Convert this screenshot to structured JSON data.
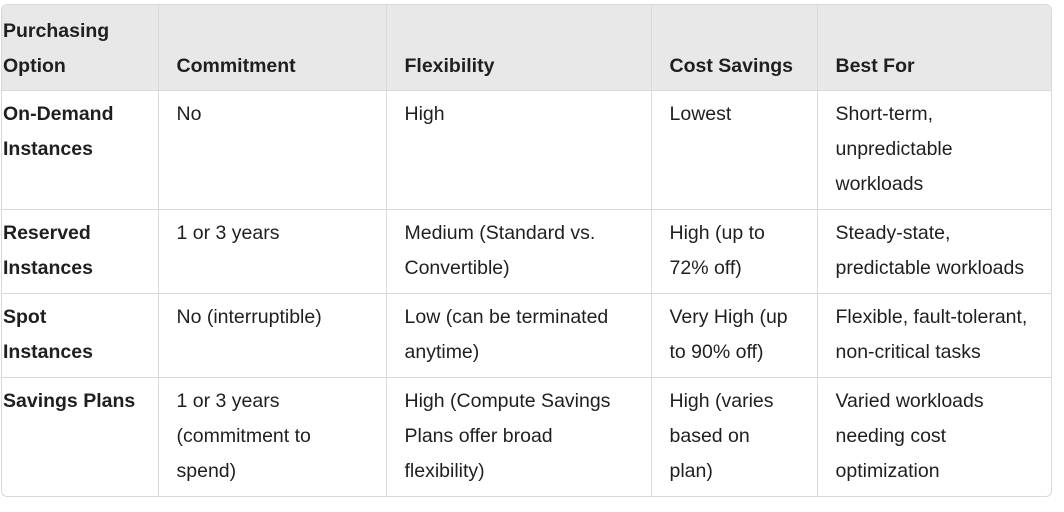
{
  "table": {
    "headers": [
      "Purchasing Option",
      "Commitment",
      "Flexibility",
      "Cost Savings",
      "Best For"
    ],
    "rows": [
      [
        "On-Demand Instances",
        "No",
        "High",
        "Lowest",
        "Short-term, unpredictable workloads"
      ],
      [
        "Reserved Instances",
        "1 or 3 years",
        "Medium (Standard vs. Convertible)",
        "High (up to 72% off)",
        "Steady-state, predictable workloads"
      ],
      [
        "Spot Instances",
        "No (interruptible)",
        "Low (can be terminated anytime)",
        "Very High (up to 90% off)",
        "Flexible, fault-tolerant, non-critical tasks"
      ],
      [
        "Savings Plans",
        "1 or 3 years (commitment to spend)",
        "High (Compute Savings Plans offer broad flexibility)",
        "High (varies based on plan)",
        "Varied workloads needing cost optimization"
      ]
    ]
  },
  "colors": {
    "header_background": "#e8e8e8",
    "border": "#d9d9d9",
    "text": "#1f1f1f"
  }
}
